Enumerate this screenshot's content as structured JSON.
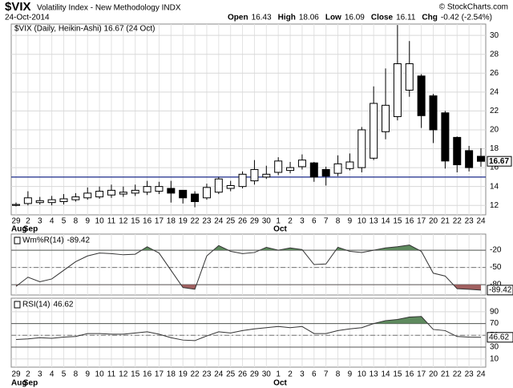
{
  "header": {
    "symbol": "$VIX",
    "name": "Volatility Index - New Methodology INDX",
    "date": "24-Oct-2014",
    "quote": [
      {
        "label": "Open",
        "value": 16.43
      },
      {
        "label": "High",
        "value": 18.06
      },
      {
        "label": "Low",
        "value": 16.09
      },
      {
        "label": "Close",
        "value": 16.11
      },
      {
        "label": "Chg",
        "value": -0.42
      }
    ],
    "change_pct": "(-2.54%)",
    "credit": "© StockCharts.com"
  },
  "chart_data": [
    {
      "type": "candlestick",
      "legend": "$VIX (Daily, Heikin-Ashi) 16.67 (24 Oct)",
      "categories": [
        "29",
        "2",
        "3",
        "4",
        "5",
        "8",
        "9",
        "10",
        "11",
        "12",
        "15",
        "16",
        "17",
        "18",
        "19",
        "22",
        "23",
        "24",
        "25",
        "26",
        "29",
        "30",
        "1",
        "2",
        "3",
        "6",
        "7",
        "8",
        "9",
        "10",
        "13",
        "14",
        "15",
        "16",
        "17",
        "20",
        "21",
        "22",
        "23",
        "24"
      ],
      "months": [
        "Aug",
        "Sep",
        null,
        null,
        null,
        null,
        null,
        null,
        null,
        null,
        null,
        null,
        null,
        null,
        null,
        null,
        null,
        null,
        null,
        null,
        null,
        null,
        "Oct",
        null,
        null,
        null,
        null,
        null,
        null,
        null,
        null,
        null,
        null,
        null,
        null,
        null,
        null,
        null,
        null,
        null
      ],
      "open": [
        12.0,
        12.2,
        12.3,
        12.3,
        12.4,
        12.6,
        12.8,
        12.9,
        13.1,
        13.2,
        13.3,
        13.4,
        13.5,
        13.8,
        13.6,
        13.2,
        12.8,
        13.4,
        13.8,
        14.0,
        14.6,
        15.0,
        15.5,
        15.7,
        16.1,
        16.5,
        15.8,
        15.4,
        15.9,
        16.0,
        17.0,
        19.8,
        21.4,
        24.2,
        25.7,
        23.6,
        21.8,
        19.2,
        17.8,
        17.2
      ],
      "high": [
        12.3,
        13.5,
        12.9,
        13.0,
        13.2,
        13.3,
        13.9,
        14.0,
        14.2,
        14.0,
        14.2,
        14.6,
        14.5,
        14.6,
        13.6,
        13.5,
        14.3,
        15.0,
        14.6,
        15.6,
        16.8,
        16.2,
        17.1,
        16.6,
        17.4,
        16.6,
        16.1,
        17.3,
        17.5,
        20.3,
        24.6,
        26.5,
        31.1,
        29.4,
        25.9,
        23.8,
        22.0,
        19.3,
        18.3,
        18.06
      ],
      "low": [
        11.9,
        12.0,
        12.1,
        12.0,
        12.1,
        12.4,
        12.6,
        12.7,
        12.8,
        12.9,
        13.0,
        13.1,
        13.2,
        12.3,
        12.2,
        11.8,
        12.6,
        13.2,
        13.5,
        13.8,
        14.2,
        14.8,
        15.2,
        15.4,
        15.8,
        14.5,
        14.1,
        15.1,
        15.7,
        15.5,
        16.8,
        19.0,
        21.0,
        23.5,
        20.2,
        18.6,
        15.9,
        15.5,
        15.6,
        16.09
      ],
      "close": [
        12.1,
        12.8,
        12.5,
        12.6,
        12.7,
        12.9,
        13.3,
        13.5,
        13.6,
        13.4,
        13.6,
        14.0,
        14.0,
        13.3,
        12.8,
        12.4,
        13.9,
        14.8,
        14.1,
        15.3,
        15.8,
        15.3,
        16.7,
        16.0,
        16.8,
        15.0,
        15.1,
        16.4,
        16.6,
        20.0,
        22.8,
        22.6,
        27.0,
        27.0,
        21.5,
        20.0,
        16.7,
        16.3,
        16.0,
        16.67
      ],
      "up_color": "#ffffff",
      "down_color": "#000000",
      "hline": 15,
      "hline_color": "#1a2a8a",
      "ylim": [
        11,
        31.2
      ],
      "yticks": [
        12,
        14,
        16,
        18,
        20,
        22,
        24,
        26,
        28,
        30
      ],
      "grid": true
    },
    {
      "type": "line",
      "series": [
        {
          "name": "Wm%R(14)",
          "color": "#333333",
          "values": [
            -83,
            -67,
            -75,
            -70,
            -55,
            -40,
            -30,
            -25,
            -26,
            -28,
            -27,
            -14,
            -25,
            -55,
            -85,
            -88,
            -30,
            -12,
            -22,
            -26,
            -24,
            -15,
            -20,
            -16,
            -19,
            -45,
            -44,
            -15,
            -22,
            -24,
            -20,
            -16,
            -14,
            -11,
            -22,
            -60,
            -65,
            -87,
            -88,
            -89.42
          ]
        }
      ],
      "overbought": -20,
      "oversold": -80,
      "ylim": [
        -98,
        8
      ],
      "yticks": [
        -20,
        -50,
        -80
      ],
      "grid": true
    },
    {
      "type": "line",
      "series": [
        {
          "name": "RSI(14)",
          "color": "#333333",
          "values": [
            43,
            44,
            46,
            45,
            47,
            48,
            53,
            53,
            52,
            52,
            54,
            56,
            52,
            46,
            42,
            41,
            49,
            56,
            54,
            58,
            61,
            63,
            65,
            63,
            65,
            53,
            53,
            58,
            61,
            63,
            70,
            75,
            77,
            81,
            82,
            60,
            58,
            48,
            47,
            46.62
          ]
        }
      ],
      "overbought": 70,
      "oversold": 30,
      "ylim": [
        -4,
        113
      ],
      "yticks": [
        10,
        30,
        50,
        70,
        90
      ],
      "grid": true
    }
  ]
}
